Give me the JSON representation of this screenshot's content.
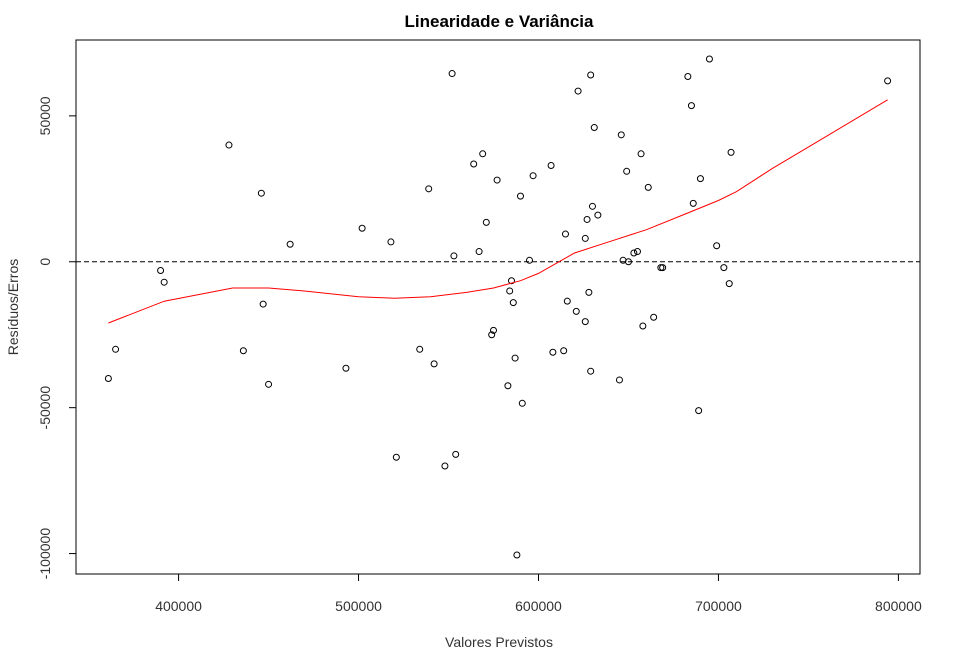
{
  "chart_data": {
    "type": "scatter",
    "title": "Linearidade e Variância",
    "xlabel": "Valores Previstos",
    "ylabel": "Resíduos/Erros",
    "xlim": [
      343000,
      812000
    ],
    "ylim": [
      -107000,
      76000
    ],
    "x_ticks": [
      400000,
      500000,
      600000,
      700000,
      800000
    ],
    "x_tick_labels": [
      "400000",
      "500000",
      "600000",
      "700000",
      "800000"
    ],
    "y_ticks": [
      -100000,
      -50000,
      0,
      50000
    ],
    "y_tick_labels": [
      "-100000",
      "-50000",
      "0",
      "50000"
    ],
    "grid": false,
    "reference_line": {
      "y": 0,
      "style": "dashed",
      "color": "#000000"
    },
    "colors": {
      "points": "#000000",
      "smooth": "#ff0000"
    },
    "points": [
      [
        361000,
        -40000
      ],
      [
        365000,
        -30000
      ],
      [
        390000,
        -3000
      ],
      [
        392000,
        -7000
      ],
      [
        428000,
        40000
      ],
      [
        436000,
        -30500
      ],
      [
        446000,
        23500
      ],
      [
        447000,
        -14500
      ],
      [
        450000,
        -42000
      ],
      [
        462000,
        6000
      ],
      [
        493000,
        -36500
      ],
      [
        502000,
        11500
      ],
      [
        518000,
        6800
      ],
      [
        521000,
        -67000
      ],
      [
        534000,
        -30000
      ],
      [
        539000,
        25000
      ],
      [
        542000,
        -35000
      ],
      [
        548000,
        -70000
      ],
      [
        552000,
        64500
      ],
      [
        553000,
        2000
      ],
      [
        554000,
        -66000
      ],
      [
        564000,
        33500
      ],
      [
        567000,
        3500
      ],
      [
        569000,
        37000
      ],
      [
        571000,
        13500
      ],
      [
        574000,
        -25000
      ],
      [
        575000,
        -23500
      ],
      [
        577000,
        28000
      ],
      [
        583000,
        -42500
      ],
      [
        584000,
        -10000
      ],
      [
        585000,
        -6500
      ],
      [
        586000,
        -14000
      ],
      [
        587000,
        -33000
      ],
      [
        588000,
        -100500
      ],
      [
        590000,
        22500
      ],
      [
        591000,
        -48500
      ],
      [
        595000,
        500
      ],
      [
        597000,
        29500
      ],
      [
        607000,
        33000
      ],
      [
        608000,
        -31000
      ],
      [
        614000,
        -30500
      ],
      [
        615000,
        9500
      ],
      [
        616000,
        -13500
      ],
      [
        621000,
        -17000
      ],
      [
        622000,
        58500
      ],
      [
        626000,
        -20500
      ],
      [
        626000,
        8000
      ],
      [
        627000,
        14500
      ],
      [
        628000,
        -10500
      ],
      [
        629000,
        64000
      ],
      [
        629000,
        -37500
      ],
      [
        630000,
        19000
      ],
      [
        631000,
        46000
      ],
      [
        633000,
        16000
      ],
      [
        645000,
        -40500
      ],
      [
        646000,
        43500
      ],
      [
        647000,
        500
      ],
      [
        649000,
        31000
      ],
      [
        650000,
        0
      ],
      [
        653000,
        3000
      ],
      [
        655000,
        3500
      ],
      [
        657000,
        37000
      ],
      [
        658000,
        -22000
      ],
      [
        661000,
        25500
      ],
      [
        664000,
        -19000
      ],
      [
        668000,
        -2000
      ],
      [
        669000,
        -2000
      ],
      [
        683000,
        63500
      ],
      [
        685000,
        53500
      ],
      [
        686000,
        20000
      ],
      [
        689000,
        -51000
      ],
      [
        690000,
        28500
      ],
      [
        695000,
        69500
      ],
      [
        699000,
        5500
      ],
      [
        703000,
        -2000
      ],
      [
        706000,
        -7500
      ],
      [
        707000,
        37500
      ],
      [
        794000,
        62000
      ]
    ],
    "smooth_line": [
      [
        361000,
        -21000
      ],
      [
        392000,
        -13500
      ],
      [
        430000,
        -9000
      ],
      [
        450000,
        -9000
      ],
      [
        470000,
        -10000
      ],
      [
        500000,
        -12000
      ],
      [
        520000,
        -12500
      ],
      [
        540000,
        -12000
      ],
      [
        560000,
        -10500
      ],
      [
        575000,
        -9000
      ],
      [
        590000,
        -6500
      ],
      [
        600000,
        -4000
      ],
      [
        610000,
        -500
      ],
      [
        620000,
        3000
      ],
      [
        640000,
        7000
      ],
      [
        660000,
        11000
      ],
      [
        680000,
        16000
      ],
      [
        700000,
        21000
      ],
      [
        710000,
        24000
      ],
      [
        730000,
        32000
      ],
      [
        760000,
        43000
      ],
      [
        794000,
        55500
      ]
    ]
  }
}
